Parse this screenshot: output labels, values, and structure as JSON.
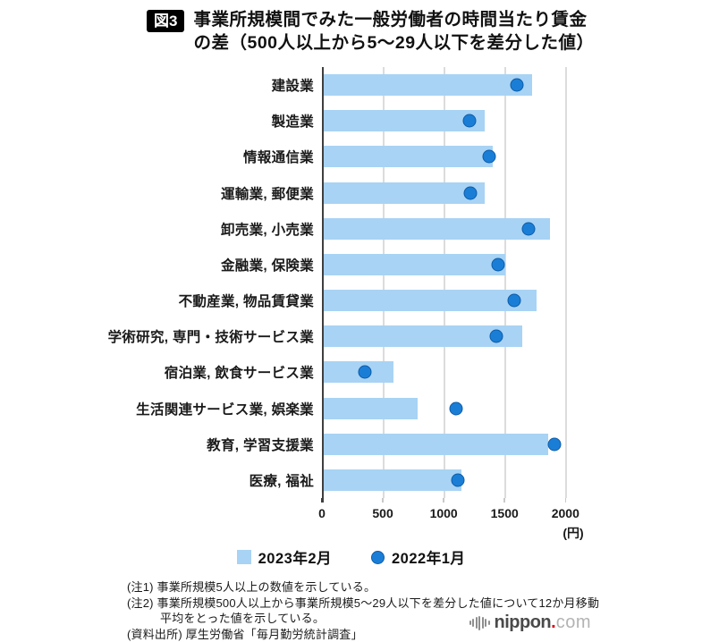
{
  "header": {
    "badge": "図3",
    "title_line1": "事業所規模間でみた一般労働者の時間当たり賃金",
    "title_line2": "の差（500人以上から5～29人以下を差分した値）"
  },
  "chart_data": {
    "type": "bar",
    "orientation": "horizontal",
    "title": "事業所規模間でみた一般労働者の時間当たり賃金の差（500人以上から5～29人以下を差分した値）",
    "categories": [
      "建設業",
      "製造業",
      "情報通信業",
      "運輸業, 郵便業",
      "卸売業, 小売業",
      "金融業, 保険業",
      "不動産業, 物品賃貸業",
      "学術研究, 専門・技術サービス業",
      "宿泊業, 飲食サービス業",
      "生活関連サービス業, 娯楽業",
      "教育, 学習支援業",
      "医療, 福祉"
    ],
    "series": [
      {
        "name": "2023年2月",
        "mark": "bar",
        "color": "#a8d3f4",
        "values": [
          1710,
          1320,
          1390,
          1320,
          1860,
          1490,
          1750,
          1630,
          570,
          770,
          1840,
          1130
        ]
      },
      {
        "name": "2022年1月",
        "mark": "point",
        "color": "#1b7ed6",
        "border_color": "#0d5ca8",
        "values": [
          1600,
          1210,
          1370,
          1220,
          1700,
          1450,
          1580,
          1430,
          350,
          1100,
          1910,
          1120
        ]
      }
    ],
    "x_ticks": [
      0,
      500,
      1000,
      1500,
      2000
    ],
    "xlim": [
      0,
      2130
    ],
    "xlabel_unit": "(円)",
    "grid": "vertical",
    "legend_position": "bottom"
  },
  "notes": [
    {
      "text": "(注1) 事業所規模5人以上の数値を示している。",
      "indent": false
    },
    {
      "text": "(注2) 事業所規模500人以上から事業所規模5～29人以下を差分した値について12か月移動",
      "indent": false
    },
    {
      "text": "平均をとった値を示している。",
      "indent": true
    },
    {
      "text": "(資料出所) 厚生労働省「毎月勤労統計調査」",
      "indent": false
    }
  ],
  "logo": {
    "name": "nippon",
    "dot": ".",
    "tld": "com"
  }
}
